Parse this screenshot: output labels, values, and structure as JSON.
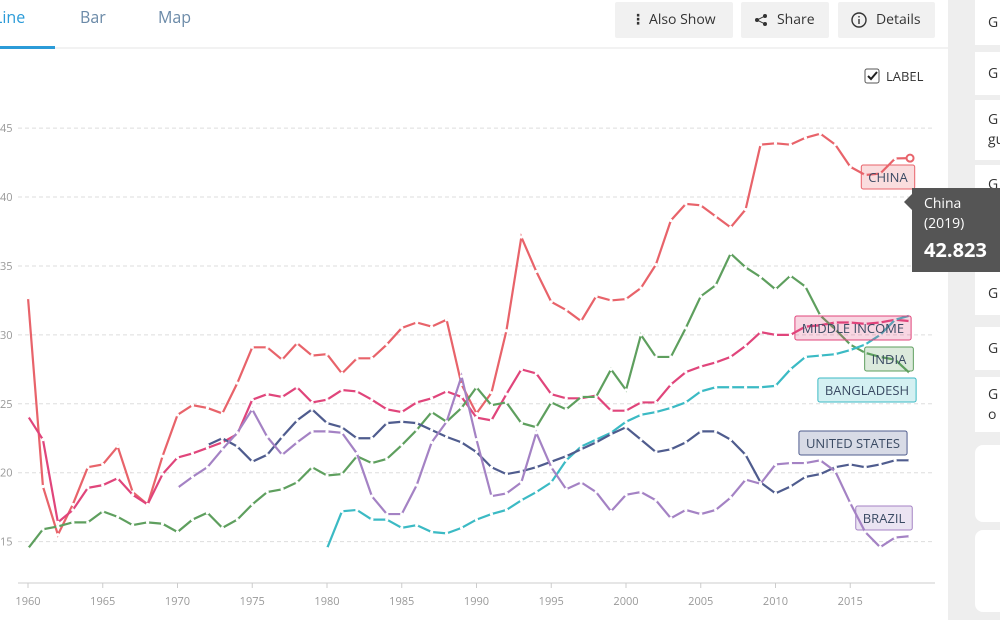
{
  "nav": {
    "tabs": [
      "Line",
      "Bar",
      "Map"
    ],
    "buttons": [
      "Also Show",
      "Share",
      "Details"
    ],
    "checkbox": "LABEL"
  },
  "sidebar": {
    "items": [
      [
        "G"
      ],
      [
        "G"
      ],
      [
        "G",
        "gu"
      ],
      [
        "G"
      ],
      [
        "G"
      ],
      [
        "G"
      ],
      [
        "G"
      ],
      [
        "G",
        "o"
      ]
    ]
  },
  "tooltip": {
    "name": "China",
    "period": "(2019)"
  },
  "chart_data": {
    "type": "line",
    "grid": true,
    "x": [
      1960,
      1961,
      1962,
      1963,
      1964,
      1965,
      1966,
      1967,
      1968,
      1969,
      1970,
      1971,
      1972,
      1973,
      1974,
      1975,
      1976,
      1977,
      1978,
      1979,
      1980,
      1981,
      1982,
      1983,
      1984,
      1985,
      1986,
      1987,
      1988,
      1989,
      1990,
      1991,
      1992,
      1993,
      1994,
      1995,
      1996,
      1997,
      1998,
      1999,
      2000,
      2001,
      2002,
      2003,
      2004,
      2005,
      2006,
      2007,
      2008,
      2009,
      2010,
      2011,
      2012,
      2013,
      2014,
      2015,
      2016,
      2017,
      2018,
      2019
    ],
    "xlim": [
      1960,
      2020
    ],
    "xticks": [
      1960,
      1965,
      1970,
      1975,
      1980,
      1985,
      1990,
      1995,
      2000,
      2005,
      2010,
      2015
    ],
    "ylim": [
      12,
      49
    ],
    "yticks": [
      15,
      20,
      25,
      30,
      35,
      40,
      45
    ],
    "series": [
      {
        "name": "CHINA",
        "color": "#e8636a",
        "values": [
          32.7,
          19.0,
          15.5,
          17.7,
          20.4,
          20.6,
          21.9,
          18.6,
          17.7,
          21.2,
          24.2,
          24.9,
          24.7,
          24.3,
          26.5,
          29.1,
          29.1,
          28.2,
          29.4,
          28.5,
          28.6,
          27.2,
          28.3,
          28.3,
          29.3,
          30.5,
          30.9,
          30.6,
          31.1,
          26.4,
          24.3,
          25.8,
          30.3,
          37.1,
          34.6,
          32.4,
          31.8,
          31.0,
          32.8,
          32.5,
          32.6,
          33.4,
          35.1,
          38.3,
          39.5,
          39.4,
          38.6,
          37.8,
          39.1,
          43.8,
          43.9,
          43.8,
          44.3,
          44.6,
          43.8,
          42.2,
          41.6,
          41.7,
          42.8,
          42.823
        ]
      },
      {
        "name": "MIDDLE INCOME",
        "color": "#e0457b",
        "values": [
          24.1,
          22.4,
          16.4,
          17.3,
          18.9,
          19.1,
          19.6,
          18.4,
          17.7,
          19.9,
          21.1,
          21.4,
          21.8,
          22.2,
          22.8,
          25.3,
          25.7,
          25.5,
          26.2,
          25.1,
          25.3,
          26.0,
          25.9,
          25.3,
          24.6,
          24.4,
          25.1,
          25.4,
          25.9,
          25.5,
          24.0,
          23.8,
          25.7,
          27.5,
          27.2,
          25.7,
          25.4,
          25.4,
          25.6,
          24.5,
          24.5,
          25.1,
          25.1,
          26.4,
          27.3,
          27.7,
          28.0,
          28.4,
          29.2,
          30.2,
          30.0,
          30.0,
          30.6,
          30.7,
          30.9,
          30.9,
          30.8,
          30.9,
          31.1,
          31.0
        ]
      },
      {
        "name": "INDIA",
        "color": "#5e9f5e",
        "values": [
          14.5,
          15.9,
          16.1,
          16.4,
          16.4,
          17.2,
          16.8,
          16.2,
          16.4,
          16.3,
          15.7,
          16.6,
          17.1,
          16.0,
          16.6,
          17.7,
          18.6,
          18.8,
          19.3,
          20.4,
          19.8,
          19.9,
          21.2,
          20.7,
          21.0,
          22.0,
          23.1,
          24.4,
          23.7,
          24.7,
          26.2,
          24.9,
          25.1,
          23.6,
          23.3,
          25.1,
          24.6,
          25.5,
          25.5,
          27.5,
          26.0,
          30.0,
          28.4,
          28.4,
          30.5,
          32.8,
          33.6,
          35.9,
          34.9,
          34.2,
          33.3,
          34.3,
          33.5,
          31.4,
          30.4,
          29.3,
          28.7,
          28.4,
          28.2,
          27.2
        ]
      },
      {
        "name": "BANGLADESH",
        "color": "#3bbac4",
        "values": [
          null,
          null,
          null,
          null,
          null,
          null,
          null,
          null,
          null,
          null,
          null,
          null,
          null,
          null,
          null,
          null,
          null,
          null,
          null,
          null,
          14.5,
          17.2,
          17.3,
          16.6,
          16.6,
          16.0,
          16.2,
          15.7,
          15.6,
          16.0,
          16.6,
          17.0,
          17.3,
          18.0,
          18.6,
          19.3,
          20.9,
          21.9,
          22.4,
          22.9,
          23.7,
          24.2,
          24.4,
          24.7,
          25.1,
          25.9,
          26.2,
          26.2,
          26.2,
          26.2,
          26.3,
          27.5,
          28.4,
          28.5,
          28.6,
          28.9,
          29.3,
          30.0,
          31.1,
          31.4
        ]
      },
      {
        "name": "UNITED STATES",
        "color": "#4f5c8e",
        "values": [
          null,
          null,
          null,
          null,
          null,
          null,
          null,
          null,
          null,
          null,
          null,
          null,
          22.0,
          22.5,
          21.9,
          20.8,
          21.3,
          22.6,
          23.8,
          24.6,
          23.6,
          23.3,
          22.5,
          22.5,
          23.6,
          23.7,
          23.6,
          23.1,
          22.6,
          22.2,
          21.5,
          20.4,
          19.9,
          20.1,
          20.4,
          20.8,
          21.2,
          21.7,
          22.2,
          22.8,
          23.3,
          22.4,
          21.5,
          21.7,
          22.2,
          23.0,
          23.0,
          22.4,
          21.3,
          19.3,
          18.5,
          19.0,
          19.7,
          19.9,
          20.4,
          20.6,
          20.4,
          20.6,
          20.9,
          20.9
        ]
      },
      {
        "name": "BRAZIL",
        "color": "#a482c4",
        "values": [
          null,
          null,
          null,
          null,
          null,
          null,
          null,
          null,
          null,
          null,
          18.9,
          19.7,
          20.4,
          21.7,
          22.9,
          24.6,
          22.6,
          21.3,
          22.2,
          23.0,
          23.0,
          22.9,
          21.4,
          18.3,
          17.0,
          17.0,
          19.1,
          22.2,
          23.7,
          27.0,
          22.4,
          18.3,
          18.5,
          19.3,
          22.9,
          20.4,
          18.8,
          19.3,
          18.6,
          17.2,
          18.4,
          18.6,
          18.0,
          16.7,
          17.3,
          17.0,
          17.3,
          18.2,
          19.5,
          19.2,
          20.6,
          20.7,
          20.7,
          20.9,
          20.1,
          17.8,
          15.7,
          14.6,
          15.3,
          15.4
        ]
      }
    ]
  }
}
